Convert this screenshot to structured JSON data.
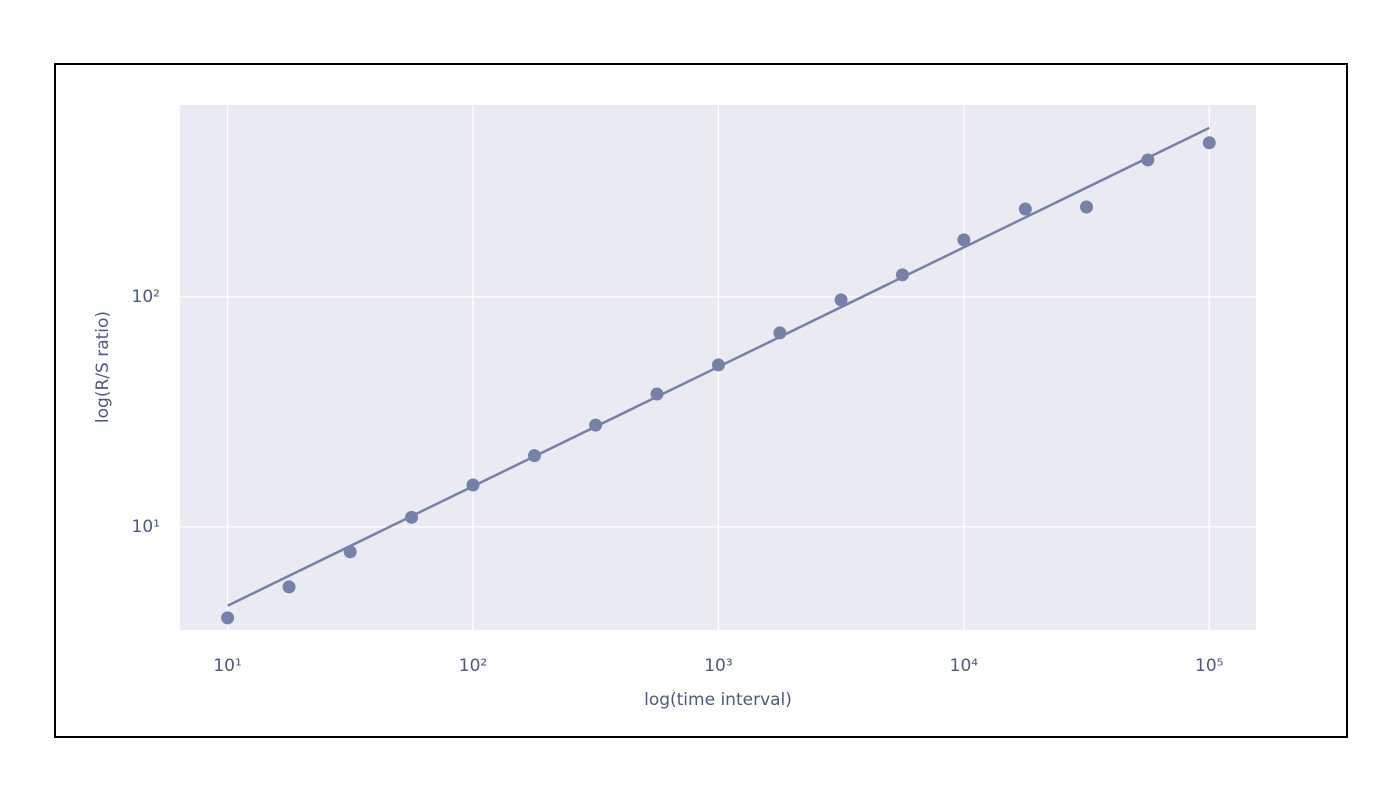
{
  "chart_data": {
    "type": "scatter",
    "xlabel": "log(time interval)",
    "ylabel": "log(R/S ratio)",
    "xscale": "log",
    "yscale": "log",
    "xlim": [
      6.4,
      155000
    ],
    "ylim": [
      3.56,
      683
    ],
    "xticks": [
      {
        "value": 10,
        "label": "10¹"
      },
      {
        "value": 100,
        "label": "10²"
      },
      {
        "value": 1000,
        "label": "10³"
      },
      {
        "value": 10000,
        "label": "10⁴"
      },
      {
        "value": 100000,
        "label": "10⁵"
      }
    ],
    "yticks": [
      {
        "value": 10,
        "label": "10¹"
      },
      {
        "value": 100,
        "label": "10²"
      }
    ],
    "grid": true,
    "x": [
      10,
      17.8,
      31.6,
      56.2,
      100,
      178,
      316,
      562,
      1000,
      1780,
      3160,
      5620,
      10000,
      17800,
      31600,
      56200,
      100000
    ],
    "series": [
      {
        "color": "#7681a8",
        "values": [
          4.02,
          5.48,
          7.79,
          11.0,
          15.2,
          20.4,
          27.7,
          37.8,
          50.6,
          69.7,
          97.0,
          124.7,
          177,
          241,
          246,
          394,
          468
        ]
      }
    ],
    "fit": {
      "color": "#7681a8",
      "x": [
        10,
        100000
      ],
      "values": [
        4.54,
        543
      ]
    }
  }
}
